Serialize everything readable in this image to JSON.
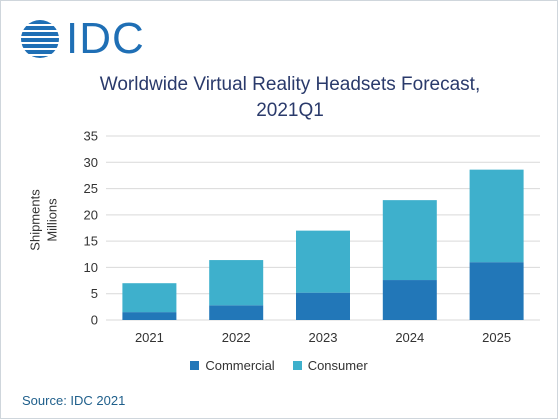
{
  "logo": {
    "text": "IDC",
    "icon": "globe-icon"
  },
  "title_line1": "Worldwide Virtual Reality Headsets Forecast,",
  "title_line2": "2021Q1",
  "ylabel_line1": "Shipments",
  "ylabel_line2": "Millions",
  "source": "Source: IDC 2021",
  "colors": {
    "commercial": "#2277b8",
    "consumer": "#3eb0cc",
    "grid": "#d9d9d9",
    "logo": "#1f6fb5"
  },
  "chart_data": {
    "type": "bar",
    "stacked": true,
    "title": "Worldwide Virtual Reality Headsets Forecast, 2021Q1",
    "xlabel": "",
    "ylabel": "Shipments Millions",
    "categories": [
      "2021",
      "2022",
      "2023",
      "2024",
      "2025"
    ],
    "series": [
      {
        "name": "Commercial",
        "values": [
          1.5,
          2.8,
          5.2,
          7.6,
          11.0
        ]
      },
      {
        "name": "Consumer",
        "values": [
          5.5,
          8.6,
          11.8,
          15.2,
          17.6
        ]
      }
    ],
    "ylim": [
      0,
      35
    ],
    "yticks": [
      0,
      5,
      10,
      15,
      20,
      25,
      30,
      35
    ],
    "grid": true,
    "legend": "bottom"
  }
}
